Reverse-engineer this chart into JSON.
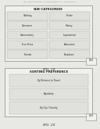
{
  "header_text": "Patent Application Publication    Jul. 26, 2016  Sheet 19 of 121    US 2016/0000000 A1",
  "fig19": {
    "title": "SUB-CATEGORIES",
    "label": "FIG. 19",
    "label_num": "1905",
    "rows": [
      [
        "Clothing",
        "Fiction"
      ],
      [
        "Consumer",
        "History"
      ],
      [
        "Commentary",
        "Inspirational"
      ],
      [
        "Free Press",
        "Adventure"
      ],
      [
        "Friends",
        "Broadcast"
      ]
    ]
  },
  "fig20": {
    "title": "SORTING PREFERENCE",
    "label": "FIG. 20",
    "label_num": "2005",
    "rows": [
      [
        "By Distance to Travel"
      ],
      [
        "Popularity"
      ],
      [
        "By City / Vicinity"
      ]
    ]
  },
  "bg_color": "#e8e8e4",
  "outer_box_color": "#f0f0ec",
  "box_color": "#e0e0dc",
  "border_color": "#888888",
  "inner_border_color": "#aaaaaa",
  "text_color": "#222222",
  "title_fontsize": 2.8,
  "cell_fontsize": 2.0,
  "fig_label_fontsize": 3.2,
  "header_fontsize": 1.2
}
